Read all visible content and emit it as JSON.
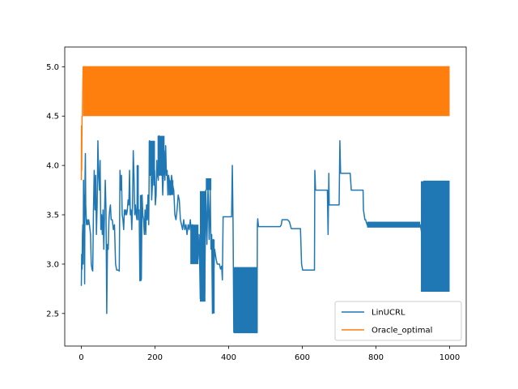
{
  "chart_data": {
    "type": "line",
    "title": "",
    "xlabel": "",
    "ylabel": "",
    "xlim": [
      -45,
      1045
    ],
    "ylim": [
      2.17,
      5.2
    ],
    "grid": false,
    "legend_placement": "lower-right",
    "x_ticks": [
      0,
      200,
      400,
      600,
      800,
      1000
    ],
    "x_tick_labels": [
      "0",
      "200",
      "400",
      "600",
      "800",
      "1000"
    ],
    "y_ticks": [
      2.5,
      3.0,
      3.5,
      4.0,
      4.5,
      5.0
    ],
    "y_tick_labels": [
      "2.5",
      "3.0",
      "3.5",
      "4.0",
      "4.5",
      "5.0"
    ],
    "series": [
      {
        "name": "LinUCRL",
        "color": "#1f77b4",
        "points": [
          [
            0,
            2.78
          ],
          [
            1,
            3.1
          ],
          [
            2,
            2.95
          ],
          [
            3,
            3.3
          ],
          [
            4,
            3.4
          ],
          [
            5,
            3.0
          ],
          [
            6,
            3.85
          ],
          [
            7,
            3.35
          ],
          [
            8,
            3.7
          ],
          [
            9,
            2.8
          ],
          [
            10,
            3.85
          ],
          [
            11,
            4.12
          ],
          [
            12,
            3.6
          ],
          [
            14,
            3.4
          ],
          [
            16,
            3.45
          ],
          [
            18,
            3.4
          ],
          [
            20,
            3.45
          ],
          [
            22,
            3.4
          ],
          [
            25,
            3.3
          ],
          [
            27,
            3.0
          ],
          [
            29,
            2.95
          ],
          [
            31,
            2.93
          ],
          [
            33,
            3.55
          ],
          [
            35,
            3.95
          ],
          [
            37,
            3.55
          ],
          [
            39,
            3.9
          ],
          [
            41,
            3.3
          ],
          [
            43,
            3.6
          ],
          [
            45,
            4.25
          ],
          [
            47,
            3.9
          ],
          [
            49,
            3.75
          ],
          [
            51,
            4.05
          ],
          [
            53,
            3.35
          ],
          [
            55,
            3.5
          ],
          [
            57,
            3.3
          ],
          [
            59,
            3.55
          ],
          [
            61,
            3.15
          ],
          [
            63,
            3.5
          ],
          [
            65,
            3.85
          ],
          [
            67,
            3.55
          ],
          [
            69,
            2.5
          ],
          [
            71,
            3.2
          ],
          [
            73,
            3.15
          ],
          [
            75,
            3.45
          ],
          [
            77,
            3.55
          ],
          [
            79,
            3.6
          ],
          [
            81,
            3.45
          ],
          [
            84,
            3.45
          ],
          [
            87,
            3.35
          ],
          [
            90,
            3.4
          ],
          [
            93,
            3.0
          ],
          [
            96,
            2.94
          ],
          [
            100,
            2.94
          ],
          [
            103,
            2.93
          ],
          [
            105,
            3.95
          ],
          [
            107,
            3.75
          ],
          [
            109,
            3.9
          ],
          [
            111,
            3.5
          ],
          [
            113,
            3.45
          ],
          [
            115,
            3.35
          ],
          [
            117,
            3.55
          ],
          [
            119,
            3.5
          ],
          [
            121,
            3.55
          ],
          [
            123,
            3.5
          ],
          [
            125,
            3.55
          ],
          [
            127,
            3.65
          ],
          [
            129,
            3.6
          ],
          [
            131,
            3.95
          ],
          [
            133,
            3.5
          ],
          [
            135,
            3.55
          ],
          [
            137,
            3.35
          ],
          [
            139,
            3.6
          ],
          [
            141,
            4.15
          ],
          [
            143,
            3.9
          ],
          [
            145,
            3.5
          ],
          [
            147,
            3.6
          ],
          [
            149,
            3.5
          ],
          [
            151,
            3.45
          ],
          [
            153,
            4.0
          ],
          [
            155,
            3.45
          ],
          [
            157,
            3.55
          ],
          [
            159,
            2.83
          ],
          [
            161,
            3.3
          ],
          [
            163,
            2.85
          ],
          [
            165,
            3.7
          ],
          [
            167,
            3.5
          ],
          [
            169,
            3.45
          ],
          [
            171,
            3.3
          ],
          [
            173,
            3.55
          ],
          [
            175,
            3.3
          ],
          [
            177,
            3.6
          ],
          [
            179,
            3.45
          ],
          [
            181,
            3.7
          ],
          [
            183,
            3.4
          ],
          [
            185,
            4.25
          ],
          [
            187,
            3.9
          ],
          [
            189,
            4.05
          ],
          [
            191,
            3.65
          ],
          [
            193,
            3.8
          ],
          [
            195,
            4.2
          ],
          [
            197,
            3.8
          ],
          [
            199,
            3.95
          ],
          [
            201,
            3.6
          ],
          [
            203,
            3.7
          ],
          [
            205,
            4.05
          ],
          [
            207,
            3.9
          ],
          [
            209,
            3.85
          ],
          [
            211,
            4.3
          ],
          [
            213,
            3.9
          ],
          [
            215,
            4.25
          ],
          [
            217,
            3.9
          ],
          [
            219,
            4.0
          ],
          [
            221,
            3.7
          ],
          [
            223,
            3.9
          ],
          [
            225,
            4.15
          ],
          [
            227,
            3.85
          ],
          [
            229,
            4.2
          ],
          [
            231,
            3.9
          ],
          [
            233,
            3.95
          ],
          [
            235,
            3.7
          ],
          [
            237,
            3.9
          ],
          [
            239,
            3.85
          ],
          [
            241,
            3.7
          ],
          [
            243,
            3.75
          ],
          [
            245,
            3.9
          ],
          [
            248,
            3.8
          ],
          [
            251,
            3.75
          ],
          [
            254,
            3.5
          ],
          [
            257,
            3.45
          ],
          [
            260,
            3.55
          ],
          [
            263,
            3.7
          ],
          [
            266,
            3.65
          ],
          [
            269,
            3.45
          ],
          [
            272,
            3.4
          ],
          [
            275,
            3.35
          ],
          [
            278,
            3.45
          ],
          [
            281,
            3.35
          ],
          [
            284,
            3.4
          ],
          [
            287,
            3.3
          ],
          [
            290,
            3.4
          ],
          [
            293,
            3.35
          ],
          [
            296,
            3.45
          ],
          [
            299,
            3.3
          ],
          [
            302,
            3.4
          ],
          [
            305,
            3.25
          ],
          [
            308,
            3.35
          ],
          [
            311,
            3.2
          ],
          [
            314,
            3.35
          ],
          [
            317,
            3.05
          ],
          [
            320,
            3.3
          ],
          [
            323,
            2.65
          ],
          [
            326,
            3.6
          ],
          [
            329,
            2.75
          ],
          [
            332,
            3.55
          ],
          [
            335,
            2.7
          ],
          [
            338,
            3.75
          ],
          [
            341,
            3.2
          ],
          [
            344,
            3.8
          ],
          [
            347,
            3.25
          ],
          [
            350,
            3.75
          ],
          [
            352,
            3.15
          ],
          [
            354,
            3.3
          ],
          [
            356,
            2.5
          ],
          [
            358,
            3.25
          ],
          [
            360,
            2.95
          ],
          [
            362,
            3.15
          ],
          [
            364,
            3.1
          ],
          [
            366,
            3.05
          ],
          [
            369,
            3.0
          ],
          [
            372,
            3.0
          ],
          [
            375,
            3.0
          ],
          [
            378,
            2.95
          ],
          [
            381,
            2.98
          ],
          [
            383,
            2.84
          ],
          [
            385,
            3.48
          ],
          [
            395,
            3.48
          ],
          [
            405,
            3.48
          ],
          [
            408,
            3.48
          ],
          [
            410,
            4.0
          ],
          [
            412,
            3.4
          ],
          [
            414,
            2.31
          ],
          [
            420,
            2.31
          ],
          [
            430,
            2.31
          ],
          [
            440,
            2.31
          ],
          [
            450,
            2.31
          ],
          [
            460,
            2.31
          ],
          [
            470,
            2.31
          ],
          [
            477,
            2.31
          ],
          [
            478,
            3.4
          ],
          [
            479,
            3.46
          ],
          [
            481,
            3.38
          ],
          [
            490,
            3.38
          ],
          [
            500,
            3.38
          ],
          [
            510,
            3.38
          ],
          [
            520,
            3.38
          ],
          [
            530,
            3.38
          ],
          [
            540,
            3.38
          ],
          [
            543,
            3.4
          ],
          [
            545,
            3.45
          ],
          [
            550,
            3.45
          ],
          [
            560,
            3.45
          ],
          [
            565,
            3.43
          ],
          [
            570,
            3.36
          ],
          [
            580,
            3.36
          ],
          [
            590,
            3.36
          ],
          [
            595,
            3.36
          ],
          [
            598,
            3.0
          ],
          [
            601,
            2.94
          ],
          [
            610,
            2.94
          ],
          [
            620,
            2.94
          ],
          [
            630,
            2.94
          ],
          [
            633,
            2.94
          ],
          [
            634,
            3.95
          ],
          [
            636,
            3.75
          ],
          [
            640,
            3.75
          ],
          [
            650,
            3.75
          ],
          [
            660,
            3.75
          ],
          [
            668,
            3.75
          ],
          [
            670,
            3.3
          ],
          [
            672,
            3.92
          ],
          [
            673,
            3.6
          ],
          [
            676,
            3.6
          ],
          [
            680,
            3.6
          ],
          [
            690,
            3.6
          ],
          [
            700,
            3.6
          ],
          [
            702,
            4.25
          ],
          [
            704,
            3.92
          ],
          [
            710,
            3.92
          ],
          [
            720,
            3.92
          ],
          [
            730,
            3.92
          ],
          [
            733,
            3.75
          ],
          [
            740,
            3.75
          ],
          [
            750,
            3.75
          ],
          [
            760,
            3.75
          ],
          [
            765,
            3.75
          ],
          [
            766,
            3.55
          ],
          [
            768,
            3.5
          ],
          [
            770,
            3.45
          ],
          [
            772,
            3.45
          ],
          [
            774,
            3.42
          ],
          [
            776,
            3.4
          ],
          [
            778,
            3.38
          ],
          [
            780,
            3.4
          ],
          [
            790,
            3.4
          ],
          [
            800,
            3.4
          ],
          [
            810,
            3.4
          ],
          [
            820,
            3.4
          ],
          [
            830,
            3.4
          ],
          [
            840,
            3.4
          ],
          [
            850,
            3.4
          ],
          [
            860,
            3.4
          ],
          [
            870,
            3.4
          ],
          [
            880,
            3.4
          ],
          [
            890,
            3.4
          ],
          [
            900,
            3.4
          ],
          [
            910,
            3.4
          ],
          [
            920,
            3.4
          ],
          [
            925,
            3.3
          ],
          [
            930,
            3.84
          ],
          [
            940,
            3.84
          ],
          [
            950,
            3.84
          ],
          [
            960,
            3.84
          ],
          [
            970,
            3.84
          ],
          [
            980,
            3.84
          ],
          [
            990,
            3.84
          ],
          [
            1000,
            3.84
          ]
        ],
        "oscillation_bands": [
          {
            "x": [
              150,
              156
            ],
            "y": [
              3.6,
              4.0
            ]
          },
          {
            "x": [
              159,
              164
            ],
            "y": [
              2.83,
              3.7
            ]
          },
          {
            "x": [
              183,
              200
            ],
            "y": [
              3.9,
              4.25
            ]
          },
          {
            "x": [
              207,
              226
            ],
            "y": [
              3.9,
              4.3
            ]
          },
          {
            "x": [
              237,
              250
            ],
            "y": [
              3.7,
              3.85
            ]
          },
          {
            "x": [
              296,
              318
            ],
            "y": [
              3.0,
              3.4
            ]
          },
          {
            "x": [
              322,
              337
            ],
            "y": [
              2.62,
              3.74
            ]
          },
          {
            "x": [
              338,
              353
            ],
            "y": [
              3.75,
              3.87
            ]
          },
          {
            "x": [
              355,
              362
            ],
            "y": [
              2.5,
              3.25
            ]
          },
          {
            "x": [
              414,
              479
            ],
            "y": [
              2.3,
              2.97
            ]
          },
          {
            "x": [
              776,
              920
            ],
            "y": [
              3.37,
              3.43
            ]
          },
          {
            "x": [
              922,
              1000
            ],
            "y": [
              2.72,
              3.84
            ]
          }
        ]
      },
      {
        "name": "Oracle_optimal",
        "color": "#ff7f0e",
        "points": [
          [
            0,
            3.85
          ],
          [
            0.5,
            4.4
          ],
          [
            1,
            3.95
          ],
          [
            2,
            4.5
          ],
          [
            3,
            4.5
          ],
          [
            4,
            4.8
          ],
          [
            5,
            5.0
          ],
          [
            1000,
            5.0
          ]
        ],
        "oscillation_bands": [
          {
            "x": [
              5,
              1000
            ],
            "y": [
              4.5,
              5.0
            ]
          }
        ]
      }
    ]
  }
}
